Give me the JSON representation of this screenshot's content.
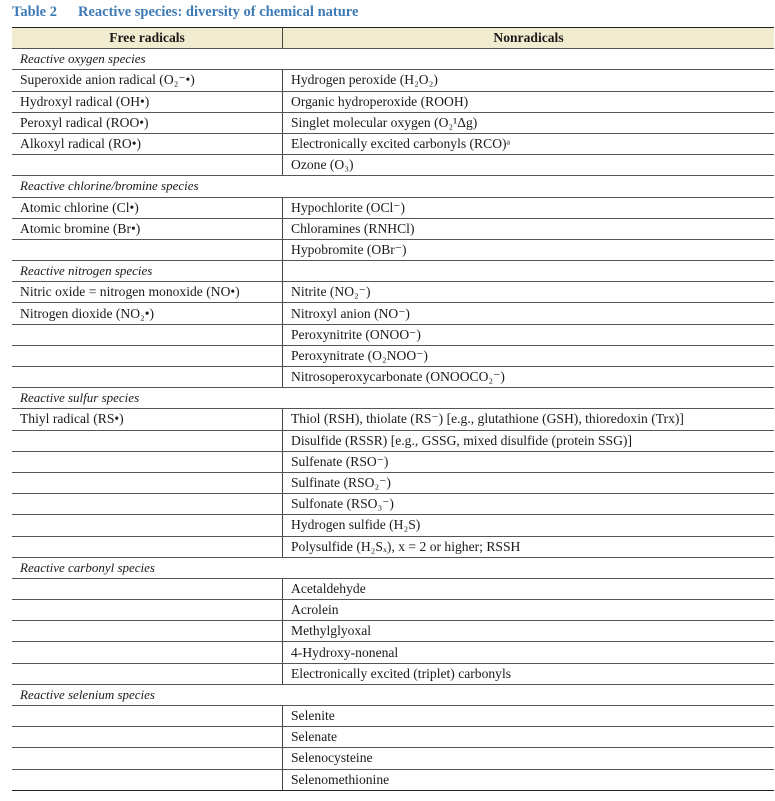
{
  "title": {
    "number": "Table 2",
    "text": "Reactive species: diversity of chemical nature"
  },
  "columns": [
    "Free radicals",
    "Nonradicals"
  ],
  "sections": [
    {
      "name": "Reactive oxygen species",
      "split": false,
      "rows": [
        [
          "Superoxide anion radical (O₂⁻•)",
          "Hydrogen peroxide (H₂O₂)"
        ],
        [
          "Hydroxyl radical (OH•)",
          "Organic hydroperoxide (ROOH)"
        ],
        [
          "Peroxyl radical (ROO•)",
          "Singlet molecular oxygen (O₂¹Δg)"
        ],
        [
          "Alkoxyl radical (RO•)",
          "Electronically excited carbonyls (RCO)ᵃ"
        ],
        [
          "",
          "Ozone (O₃)"
        ]
      ]
    },
    {
      "name": "Reactive chlorine/bromine species",
      "split": false,
      "rows": [
        [
          "Atomic chlorine (Cl•)",
          "Hypochlorite (OCl⁻)"
        ],
        [
          "Atomic bromine (Br•)",
          "Chloramines (RNHCl)"
        ],
        [
          "",
          "Hypobromite (OBr⁻)"
        ]
      ]
    },
    {
      "name": "Reactive nitrogen species",
      "split": true,
      "rows": [
        [
          "Nitric oxide = nitrogen monoxide (NO•)",
          "Nitrite (NO₂⁻)"
        ],
        [
          "Nitrogen dioxide (NO₂•)",
          "Nitroxyl anion (NO⁻)"
        ],
        [
          "",
          "Peroxynitrite (ONOO⁻)"
        ],
        [
          "",
          "Peroxynitrate (O₂NOO⁻)"
        ],
        [
          "",
          "Nitrosoperoxycarbonate (ONOOCO₂⁻)"
        ]
      ]
    },
    {
      "name": "Reactive sulfur species",
      "split": false,
      "rows": [
        [
          "Thiyl radical (RS•)",
          "Thiol (RSH), thiolate (RS⁻) [e.g., glutathione (GSH), thioredoxin (Trx)]"
        ],
        [
          "",
          "Disulfide (RSSR) [e.g., GSSG, mixed disulfide (protein SSG)]"
        ],
        [
          "",
          "Sulfenate (RSO⁻)"
        ],
        [
          "",
          "Sulfinate (RSO₂⁻)"
        ],
        [
          "",
          "Sulfonate (RSO₃⁻)"
        ],
        [
          "",
          "Hydrogen sulfide (H₂S)"
        ],
        [
          "",
          "Polysulfide (H₂Sₓ), x = 2 or higher; RSSH"
        ]
      ]
    },
    {
      "name": "Reactive carbonyl species",
      "split": false,
      "rows": [
        [
          "",
          "Acetaldehyde"
        ],
        [
          "",
          "Acrolein"
        ],
        [
          "",
          "Methylglyoxal"
        ],
        [
          "",
          "4-Hydroxy-nonenal"
        ],
        [
          "",
          "Electronically excited (triplet) carbonyls"
        ]
      ]
    },
    {
      "name": "Reactive selenium species",
      "split": false,
      "rows": [
        [
          "",
          "Selenite"
        ],
        [
          "",
          "Selenate"
        ],
        [
          "",
          "Selenocysteine"
        ],
        [
          "",
          "Selenomethionine"
        ]
      ]
    }
  ],
  "colors": {
    "title": "#3e7bb6",
    "header_bg": "#f1ebcf"
  }
}
